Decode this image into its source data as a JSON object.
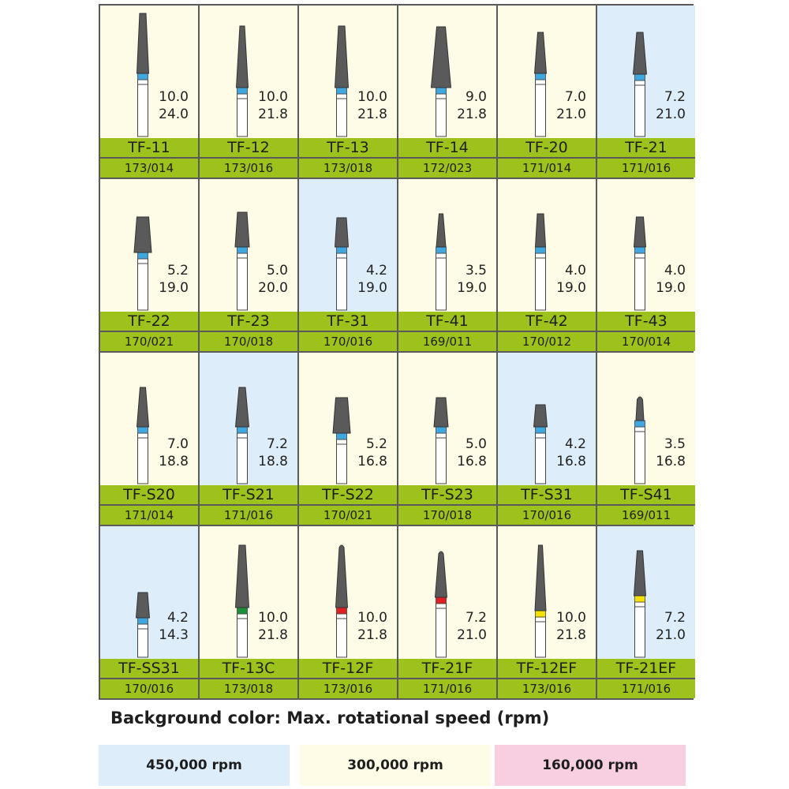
{
  "colors": {
    "cell_backgrounds": {
      "blue": "#ddeefa",
      "cream": "#fefbe6",
      "pink": "#f7cfe0"
    },
    "label_bar": "#9dc21b",
    "burr_head": "#5a5a5a",
    "band_blue": "#3ea7e0",
    "band_green": "#1a8f3a",
    "band_red": "#e02020",
    "band_yellow": "#f5e000",
    "shank": "#ffffff",
    "grid_border": "#5a5a5a"
  },
  "grid": {
    "rows": [
      [
        {
          "name": "TF-11",
          "code": "173/014",
          "d1": "10.0",
          "d2": "24.0",
          "bg": "cream",
          "band": "blue",
          "head": {
            "top": 10,
            "bottom": 86,
            "wt": 8,
            "wb": 15,
            "round": false
          }
        },
        {
          "name": "TF-12",
          "code": "173/016",
          "d1": "10.0",
          "d2": "21.8",
          "bg": "cream",
          "band": "blue",
          "head": {
            "top": 26,
            "bottom": 104,
            "wt": 6,
            "wb": 15,
            "round": false
          }
        },
        {
          "name": "TF-13",
          "code": "173/018",
          "d1": "10.0",
          "d2": "21.8",
          "bg": "cream",
          "band": "blue",
          "head": {
            "top": 26,
            "bottom": 104,
            "wt": 8,
            "wb": 17,
            "round": false
          }
        },
        {
          "name": "TF-14",
          "code": "172/023",
          "d1": "9.0",
          "d2": "21.8",
          "bg": "cream",
          "band": "blue",
          "head": {
            "top": 27,
            "bottom": 104,
            "wt": 11,
            "wb": 25,
            "round": false
          }
        },
        {
          "name": "TF-20",
          "code": "171/014",
          "d1": "7.0",
          "d2": "21.0",
          "bg": "cream",
          "band": "blue",
          "head": {
            "top": 34,
            "bottom": 86,
            "wt": 7,
            "wb": 15,
            "round": false
          }
        },
        {
          "name": "TF-21",
          "code": "171/016",
          "d1": "7.2",
          "d2": "21.0",
          "bg": "blue",
          "band": "blue",
          "head": {
            "top": 34,
            "bottom": 87,
            "wt": 8,
            "wb": 17,
            "round": false
          }
        }
      ],
      [
        {
          "name": "TF-22",
          "code": "170/021",
          "d1": "5.2",
          "d2": "19.0",
          "bg": "cream",
          "band": "blue",
          "head": {
            "top": 48,
            "bottom": 93,
            "wt": 15,
            "wb": 22,
            "round": false
          }
        },
        {
          "name": "TF-23",
          "code": "170/018",
          "d1": "5.0",
          "d2": "20.0",
          "bg": "cream",
          "band": "blue",
          "head": {
            "top": 42,
            "bottom": 86,
            "wt": 12,
            "wb": 18,
            "round": false
          }
        },
        {
          "name": "TF-31",
          "code": "170/016",
          "d1": "4.2",
          "d2": "19.0",
          "bg": "blue",
          "band": "blue",
          "head": {
            "top": 49,
            "bottom": 86,
            "wt": 12,
            "wb": 17,
            "round": false
          }
        },
        {
          "name": "TF-41",
          "code": "169/011",
          "d1": "3.5",
          "d2": "19.0",
          "bg": "cream",
          "band": "blue",
          "head": {
            "top": 44,
            "bottom": 86,
            "wt": 5,
            "wb": 12,
            "round": false
          }
        },
        {
          "name": "TF-42",
          "code": "170/012",
          "d1": "4.0",
          "d2": "19.0",
          "bg": "cream",
          "band": "blue",
          "head": {
            "top": 44,
            "bottom": 86,
            "wt": 8,
            "wb": 13,
            "round": false
          }
        },
        {
          "name": "TF-43",
          "code": "170/014",
          "d1": "4.0",
          "d2": "19.0",
          "bg": "cream",
          "band": "blue",
          "head": {
            "top": 48,
            "bottom": 86,
            "wt": 9,
            "wb": 15,
            "round": false
          }
        }
      ],
      [
        {
          "name": "TF-S20",
          "code": "171/014",
          "d1": "7.0",
          "d2": "18.8",
          "bg": "cream",
          "band": "blue",
          "head": {
            "top": 44,
            "bottom": 94,
            "wt": 7,
            "wb": 15,
            "round": false
          }
        },
        {
          "name": "TF-S21",
          "code": "171/016",
          "d1": "7.2",
          "d2": "18.8",
          "bg": "blue",
          "band": "blue",
          "head": {
            "top": 44,
            "bottom": 94,
            "wt": 8,
            "wb": 17,
            "round": false
          }
        },
        {
          "name": "TF-S22",
          "code": "170/021",
          "d1": "5.2",
          "d2": "16.8",
          "bg": "cream",
          "band": "blue",
          "head": {
            "top": 57,
            "bottom": 102,
            "wt": 15,
            "wb": 22,
            "round": false
          }
        },
        {
          "name": "TF-S23",
          "code": "170/018",
          "d1": "5.0",
          "d2": "16.8",
          "bg": "cream",
          "band": "blue",
          "head": {
            "top": 57,
            "bottom": 94,
            "wt": 12,
            "wb": 18,
            "round": false
          }
        },
        {
          "name": "TF-S31",
          "code": "170/016",
          "d1": "4.2",
          "d2": "16.8",
          "bg": "blue",
          "band": "blue",
          "head": {
            "top": 66,
            "bottom": 94,
            "wt": 12,
            "wb": 17,
            "round": false
          }
        },
        {
          "name": "TF-S41",
          "code": "169/011",
          "d1": "3.5",
          "d2": "16.8",
          "bg": "cream",
          "band": "blue",
          "head": {
            "top": 56,
            "bottom": 86,
            "wt": 7,
            "wb": 10,
            "round": true
          }
        }
      ],
      [
        {
          "name": "TF-SS31",
          "code": "170/016",
          "d1": "4.2",
          "d2": "14.3",
          "bg": "blue",
          "band": "blue",
          "head": {
            "top": 84,
            "bottom": 116,
            "wt": 12,
            "wb": 17,
            "round": false
          }
        },
        {
          "name": "TF-13C",
          "code": "173/018",
          "d1": "10.0",
          "d2": "21.8",
          "bg": "cream",
          "band": "green",
          "head": {
            "top": 24,
            "bottom": 103,
            "wt": 8,
            "wb": 17,
            "round": false
          }
        },
        {
          "name": "TF-12F",
          "code": "173/016",
          "d1": "10.0",
          "d2": "21.8",
          "bg": "cream",
          "band": "red",
          "head": {
            "top": 24,
            "bottom": 103,
            "wt": 6,
            "wb": 15,
            "round": true
          }
        },
        {
          "name": "TF-21F",
          "code": "171/016",
          "d1": "7.2",
          "d2": "21.0",
          "bg": "cream",
          "band": "red",
          "head": {
            "top": 32,
            "bottom": 90,
            "wt": 6,
            "wb": 15,
            "round": true
          }
        },
        {
          "name": "TF-12EF",
          "code": "173/016",
          "d1": "10.0",
          "d2": "21.8",
          "bg": "cream",
          "band": "yellow",
          "head": {
            "top": 24,
            "bottom": 107,
            "wt": 5,
            "wb": 14,
            "round": false
          }
        },
        {
          "name": "TF-21EF",
          "code": "171/016",
          "d1": "7.2",
          "d2": "21.0",
          "bg": "blue",
          "band": "yellow",
          "head": {
            "top": 31,
            "bottom": 88,
            "wt": 7,
            "wb": 15,
            "round": false
          }
        }
      ]
    ]
  },
  "legend": {
    "title": "Background color: Max. rotational speed (rpm)",
    "items": [
      {
        "label": "450,000 rpm",
        "color": "#ddeefa"
      },
      {
        "label": "300,000 rpm",
        "color": "#fefbe6"
      },
      {
        "label": "160,000 rpm",
        "color": "#f7cfe0"
      }
    ]
  }
}
